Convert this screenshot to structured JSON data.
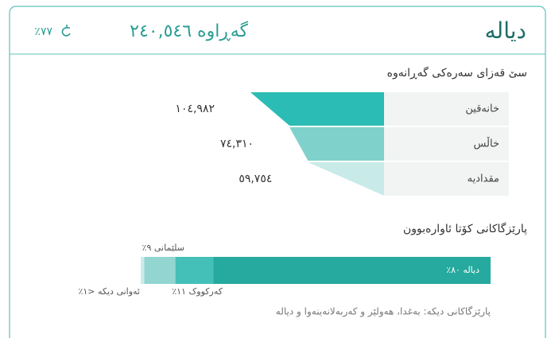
{
  "header": {
    "title": "دیالە",
    "returned": "گەڕاوە ٢٤٠,٥٤٦",
    "rate": "٧٧٪"
  },
  "funnel": {
    "title": "سێ قەزای سەرەکی گەڕانەوە",
    "rows": [
      {
        "name": "خانەقین",
        "value": 104982,
        "label": "١٠٤,٩٨٢",
        "color": "#2bbcb5"
      },
      {
        "name": "خاڵس",
        "value": 74310,
        "label": "٧٤,٣١٠",
        "color": "#7fd1cc"
      },
      {
        "name": "مقدادیە",
        "value": 59754,
        "label": "٥٩,٧٥٤",
        "color": "#c8ebe9"
      }
    ]
  },
  "provinces": {
    "title": "پارێزگاکانی کۆتا ئاوارەبوون",
    "segments": [
      {
        "label": "دیالە ٨٠٪",
        "value": 80,
        "color": "#26a99e"
      },
      {
        "label": "کەرکووک ١١٪",
        "value": 11,
        "color": "#44c0b8"
      },
      {
        "label": "سلێمانی ٩٪",
        "value": 9,
        "color": "#92d5d1"
      },
      {
        "label": "ئەوانی دیکە <١٪",
        "value": 1,
        "color": "#c9ecea"
      }
    ],
    "note": "پارێزگاکانی دیکە: بەغدا، هەولێر و کەربەلانەینەوا و دیالە"
  }
}
